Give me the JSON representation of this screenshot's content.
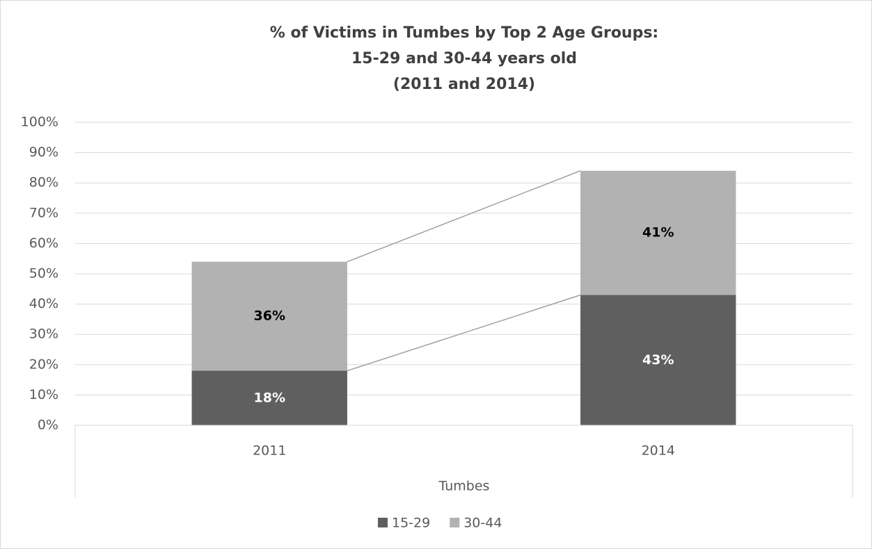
{
  "chart_data": {
    "type": "stacked_bar",
    "title": [
      "% of Victims in Tumbes by Top 2 Age Groups:",
      "15-29 and 30-44 years old",
      "(2011 and 2014)"
    ],
    "categories": [
      "2011",
      "2014"
    ],
    "group_label": "Tumbes",
    "series": [
      {
        "name": "15-29",
        "color": "#5f5f5f",
        "label_color": "#ffffff",
        "values": [
          18,
          43
        ],
        "value_labels": [
          "18%",
          "43%"
        ]
      },
      {
        "name": "30-44",
        "color": "#b2b2b2",
        "label_color": "#000000",
        "values": [
          36,
          41
        ],
        "value_labels": [
          "36%",
          "41%"
        ]
      }
    ],
    "ylim": [
      0,
      100
    ],
    "yticks": [
      {
        "value": 0,
        "label": "0%"
      },
      {
        "value": 10,
        "label": "10%"
      },
      {
        "value": 20,
        "label": "20%"
      },
      {
        "value": 30,
        "label": "30%"
      },
      {
        "value": 40,
        "label": "40%"
      },
      {
        "value": 50,
        "label": "50%"
      },
      {
        "value": 60,
        "label": "60%"
      },
      {
        "value": 70,
        "label": "70%"
      },
      {
        "value": 80,
        "label": "80%"
      },
      {
        "value": 90,
        "label": "90%"
      },
      {
        "value": 100,
        "label": "100%"
      }
    ],
    "grid": true,
    "series_lines": true,
    "legend": "bottom"
  }
}
